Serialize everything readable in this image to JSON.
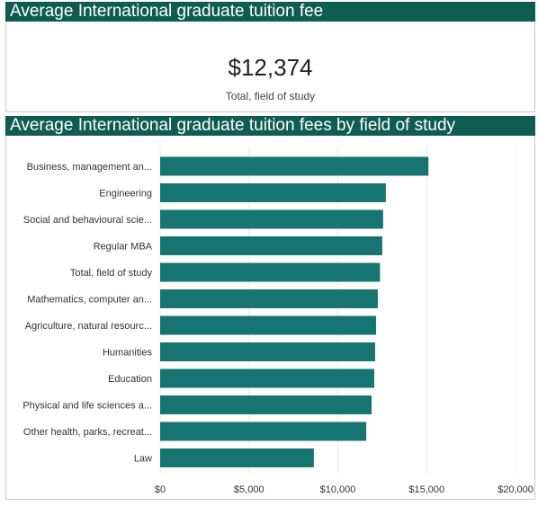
{
  "kpi": {
    "title": "Average International graduate tuition fee",
    "value": "$12,374",
    "label": "Total, field of study"
  },
  "chart_section": {
    "title": "Average International graduate tuition fees by field of study"
  },
  "colors": {
    "header_bg": "#0f5c52",
    "bar": "#167570",
    "grid": "#ececec"
  },
  "chart_data": {
    "type": "bar",
    "orientation": "horizontal",
    "title": "Average International graduate tuition fees by field of study",
    "categories": [
      "Business, management an...",
      "Engineering",
      "Social and behavioural scie...",
      "Regular MBA",
      "Total, field of study",
      "Mathematics, computer an...",
      "Agriculture, natural resourc...",
      "Humanities",
      "Education",
      "Physical and life sciences a...",
      "Other health, parks, recreat...",
      "Law"
    ],
    "values": [
      15100,
      12700,
      12550,
      12500,
      12374,
      12250,
      12150,
      12100,
      12050,
      11900,
      11600,
      8650
    ],
    "xlim": [
      0,
      20000
    ],
    "xticks": [
      0,
      5000,
      10000,
      15000,
      20000
    ],
    "xtick_labels": [
      "$0",
      "$5,000",
      "$10,000",
      "$15,000",
      "$20,000"
    ],
    "grid": true,
    "legend": "none"
  }
}
